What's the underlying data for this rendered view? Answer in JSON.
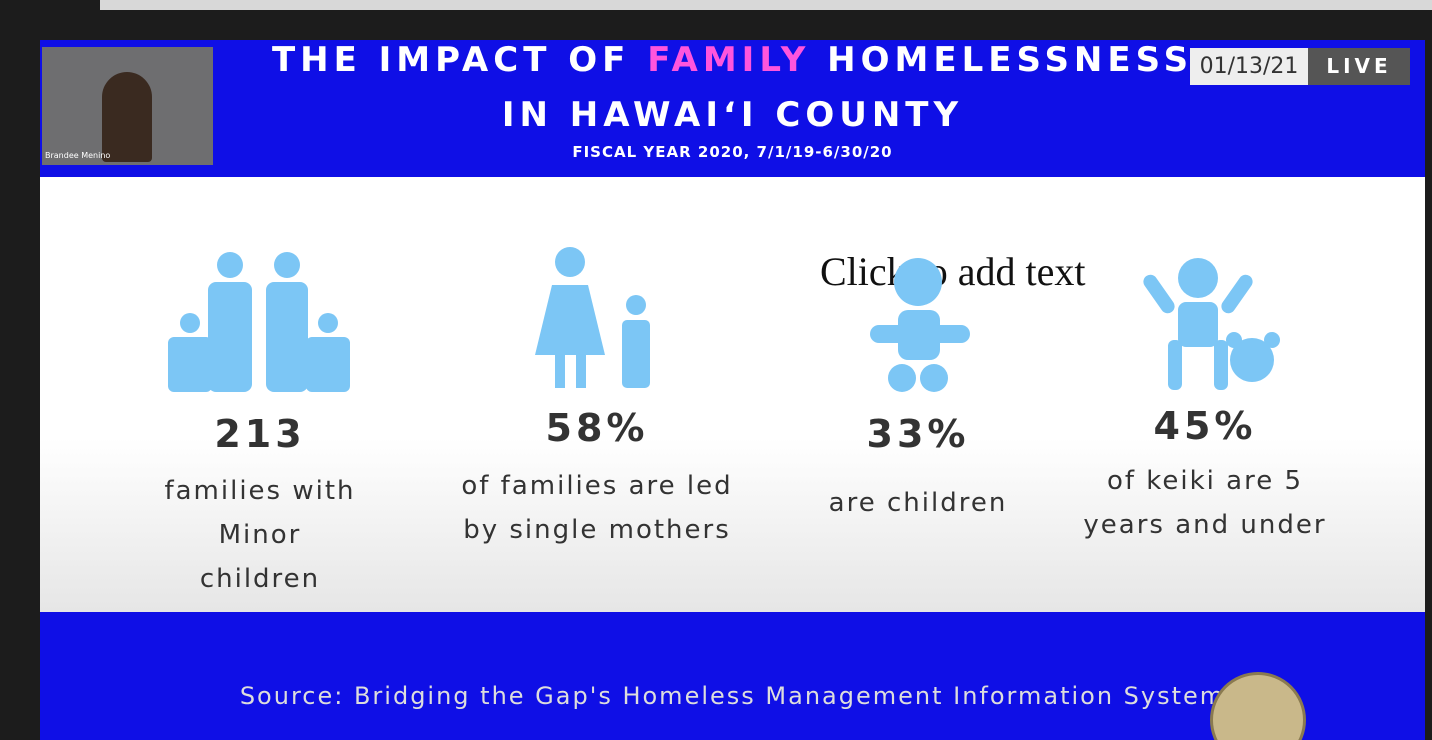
{
  "header": {
    "title_part1": "THE IMPACT OF",
    "title_highlight": "FAMILY",
    "title_part2": "HOMELESSNESS",
    "title_line2": "IN HAWAI‘I COUNTY",
    "subtitle": "FISCAL YEAR 2020, 7/1/19-6/30/20"
  },
  "badge": {
    "date": "01/13/21",
    "live": "LIVE"
  },
  "speaker": {
    "name": "Brandee Menino"
  },
  "placeholder": "Click to add text",
  "stats": [
    {
      "value": "213",
      "lines": [
        "families with",
        "Minor",
        "children"
      ]
    },
    {
      "value": "58%",
      "lines": [
        "of families are led",
        "by single mothers"
      ]
    },
    {
      "value": "33%",
      "lines": [
        "are children"
      ]
    },
    {
      "value": "45%",
      "lines": [
        "of keiki are 5",
        "years and under"
      ]
    }
  ],
  "footer": {
    "source": "Source: Bridging the Gap's Homeless Management Information System"
  }
}
